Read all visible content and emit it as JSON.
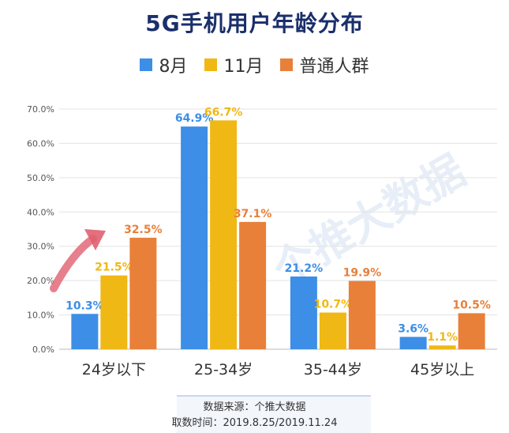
{
  "chart_data": {
    "type": "bar",
    "title": "5G手机用户年龄分布",
    "categories": [
      "24岁以下",
      "25-34岁",
      "35-44岁",
      "45岁以上"
    ],
    "series": [
      {
        "name": "8月",
        "values": [
          10.3,
          64.9,
          21.2,
          3.6
        ],
        "labels": [
          "10.3%",
          "64.9%",
          "21.2%",
          "3.6%"
        ]
      },
      {
        "name": "11月",
        "values": [
          21.5,
          66.7,
          10.7,
          1.1
        ],
        "labels": [
          "21.5%",
          "66.7%",
          "10.7%",
          "1.1%"
        ]
      },
      {
        "name": "普通人群",
        "values": [
          32.5,
          37.1,
          19.9,
          10.5
        ],
        "labels": [
          "32.5%",
          "37.1%",
          "19.9%",
          "10.5%"
        ]
      }
    ],
    "yticks": [
      "0.0%",
      "10.0%",
      "20.0%",
      "30.0%",
      "40.0%",
      "50.0%",
      "60.0%",
      "70.0%"
    ],
    "ylim": [
      0,
      70
    ],
    "grid": true,
    "legend": "top-center"
  },
  "colors": {
    "series": [
      "#3d8ee6",
      "#f0b815",
      "#e8803a"
    ],
    "title": "#1a2f6b",
    "arrow": "#e06070"
  },
  "source": {
    "line1": "数据来源：个推大数据",
    "line2": "取数时间：2019.8.25/2019.11.24"
  },
  "watermark": "个推大数据"
}
